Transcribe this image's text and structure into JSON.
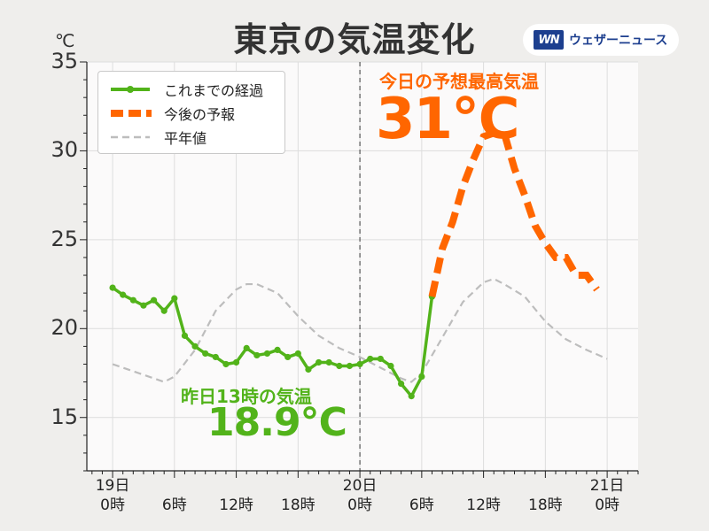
{
  "title": "東京の気温変化",
  "unit": "℃",
  "brand": {
    "mark": "WN",
    "text": "ウェザーニュース"
  },
  "legend": [
    {
      "label": "これまでの経過",
      "color": "#52b31a",
      "style": "solid-marker"
    },
    {
      "label": "今後の予報",
      "color": "#ff6600",
      "style": "thick-dash"
    },
    {
      "label": "平年値",
      "color": "#bdbdbd",
      "style": "dash"
    }
  ],
  "annotations": {
    "forecast_label": "今日の予想最高気温",
    "forecast_value": "31℃",
    "yesterday_label": "昨日13時の気温",
    "yesterday_value": "18.9℃"
  },
  "x_ticks": [
    {
      "hour": 0,
      "day": "19日",
      "time": "0時"
    },
    {
      "hour": 6,
      "day": "",
      "time": "6時"
    },
    {
      "hour": 12,
      "day": "",
      "time": "12時"
    },
    {
      "hour": 18,
      "day": "",
      "time": "18時"
    },
    {
      "hour": 24,
      "day": "20日",
      "time": "0時"
    },
    {
      "hour": 30,
      "day": "",
      "time": "6時"
    },
    {
      "hour": 36,
      "day": "",
      "time": "12時"
    },
    {
      "hour": 42,
      "day": "",
      "time": "18時"
    },
    {
      "hour": 48,
      "day": "21日",
      "time": "0時"
    }
  ],
  "chart_data": {
    "type": "line",
    "title": "東京の気温変化",
    "ylabel": "℃",
    "ylim": [
      12,
      35
    ],
    "xlim": [
      -2.5,
      51
    ],
    "x_unit": "hours from 19日0時",
    "y_ticks": [
      15,
      20,
      25,
      30,
      35
    ],
    "grid": true,
    "legend_position": "top-left",
    "vertical_marker": 24,
    "series": [
      {
        "name": "これまでの経過",
        "color": "#52b31a",
        "points": [
          [
            0,
            22.3
          ],
          [
            1,
            21.9
          ],
          [
            2,
            21.6
          ],
          [
            3,
            21.3
          ],
          [
            4,
            21.6
          ],
          [
            5,
            21.0
          ],
          [
            6,
            21.7
          ],
          [
            7,
            19.6
          ],
          [
            8,
            19.0
          ],
          [
            9,
            18.6
          ],
          [
            10,
            18.4
          ],
          [
            11,
            18.0
          ],
          [
            12,
            18.1
          ],
          [
            13,
            18.9
          ],
          [
            14,
            18.5
          ],
          [
            15,
            18.6
          ],
          [
            16,
            18.8
          ],
          [
            17,
            18.4
          ],
          [
            18,
            18.6
          ],
          [
            19,
            17.7
          ],
          [
            20,
            18.1
          ],
          [
            21,
            18.1
          ],
          [
            22,
            17.9
          ],
          [
            23,
            17.9
          ],
          [
            24,
            18.0
          ],
          [
            25,
            18.3
          ],
          [
            26,
            18.3
          ],
          [
            27,
            17.9
          ],
          [
            28,
            16.9
          ],
          [
            29,
            16.2
          ],
          [
            30,
            17.3
          ],
          [
            31,
            21.8
          ]
        ]
      },
      {
        "name": "今後の予報",
        "color": "#ff6600",
        "points": [
          [
            31,
            21.8
          ],
          [
            32,
            24.5
          ],
          [
            33,
            26.0
          ],
          [
            34,
            28.0
          ],
          [
            35,
            29.5
          ],
          [
            36,
            30.8
          ],
          [
            37,
            31.0
          ],
          [
            38,
            31.0
          ],
          [
            39,
            29.0
          ],
          [
            40,
            27.5
          ],
          [
            41,
            25.8
          ],
          [
            42,
            24.8
          ],
          [
            43,
            24.0
          ],
          [
            44,
            24.0
          ],
          [
            45,
            23.0
          ],
          [
            46,
            23.0
          ],
          [
            47,
            22.2
          ]
        ]
      },
      {
        "name": "平年値",
        "color": "#bdbdbd",
        "points": [
          [
            0,
            18.0
          ],
          [
            2,
            17.6
          ],
          [
            4,
            17.2
          ],
          [
            5,
            17.0
          ],
          [
            6,
            17.3
          ],
          [
            8,
            18.8
          ],
          [
            10,
            21.0
          ],
          [
            12,
            22.2
          ],
          [
            13,
            22.5
          ],
          [
            14,
            22.5
          ],
          [
            16,
            22.0
          ],
          [
            18,
            20.7
          ],
          [
            20,
            19.6
          ],
          [
            22,
            18.9
          ],
          [
            24,
            18.4
          ],
          [
            26,
            17.8
          ],
          [
            28,
            17.2
          ],
          [
            29,
            17.0
          ],
          [
            30,
            17.5
          ],
          [
            32,
            19.5
          ],
          [
            34,
            21.5
          ],
          [
            36,
            22.6
          ],
          [
            37,
            22.8
          ],
          [
            38,
            22.5
          ],
          [
            40,
            21.8
          ],
          [
            42,
            20.4
          ],
          [
            44,
            19.4
          ],
          [
            46,
            18.8
          ],
          [
            48,
            18.3
          ]
        ]
      }
    ]
  }
}
